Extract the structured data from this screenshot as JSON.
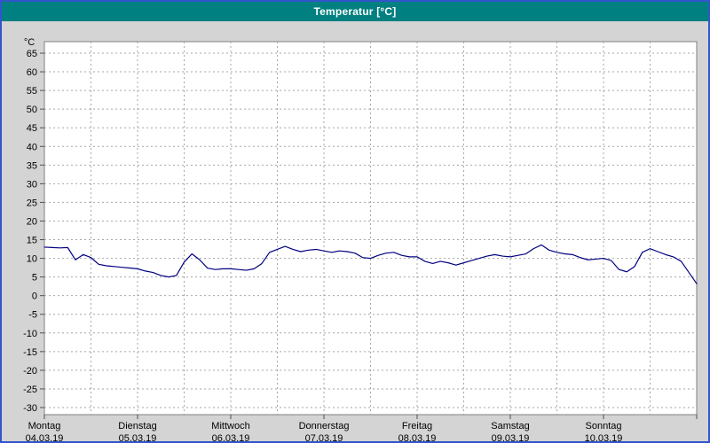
{
  "window": {
    "title": "Temperatur [°C]"
  },
  "colors": {
    "window_border": "#3355cc",
    "titlebar_bg": "#008080",
    "titlebar_text": "#ffffff",
    "body_bg": "#d4d4d4",
    "plot_bg": "#ffffff",
    "grid": "#a6a6a6",
    "axis": "#505050",
    "text": "#000000",
    "line": "#000080"
  },
  "chart_data": {
    "type": "line",
    "title": "Temperatur [°C]",
    "series_name": "Temperatur",
    "y_unit_label": "°C",
    "ylim": [
      -30,
      65
    ],
    "y_tick_step": 5,
    "y_ticks": [
      65,
      60,
      55,
      50,
      45,
      40,
      35,
      30,
      25,
      20,
      15,
      10,
      5,
      0,
      -5,
      -10,
      -15,
      -20,
      -25,
      -30
    ],
    "grid": "dashed",
    "legend_position": "none",
    "x_days": [
      {
        "name": "Montag",
        "date": "04.03.19"
      },
      {
        "name": "Dienstag",
        "date": "05.03.19"
      },
      {
        "name": "Mittwoch",
        "date": "06.03.19"
      },
      {
        "name": "Donnerstag",
        "date": "07.03.19"
      },
      {
        "name": "Freitag",
        "date": "08.03.19"
      },
      {
        "name": "Samstag",
        "date": "09.03.19"
      },
      {
        "name": "Sonntag",
        "date": "10.03.19"
      }
    ],
    "samples_per_day": 12,
    "values": [
      13.0,
      12.9,
      12.8,
      12.9,
      9.6,
      11.0,
      10.2,
      8.4,
      8.0,
      7.8,
      7.6,
      7.4,
      7.2,
      6.6,
      6.2,
      5.4,
      5.0,
      5.4,
      9.0,
      11.2,
      9.6,
      7.4,
      7.0,
      7.2,
      7.2,
      7.0,
      6.8,
      7.2,
      8.6,
      11.6,
      12.4,
      13.2,
      12.4,
      11.8,
      12.2,
      12.4,
      12.0,
      11.6,
      12.0,
      11.8,
      11.4,
      10.2,
      10.0,
      10.8,
      11.4,
      11.6,
      10.8,
      10.4,
      10.4,
      9.2,
      8.6,
      9.2,
      8.8,
      8.2,
      8.8,
      9.4,
      10.0,
      10.6,
      11.0,
      10.6,
      10.4,
      10.8,
      11.2,
      12.6,
      13.6,
      12.2,
      11.6,
      11.2,
      11.0,
      10.2,
      9.6,
      9.8,
      10.0,
      9.4,
      7.0,
      6.4,
      7.8,
      11.6,
      12.6,
      11.8,
      11.0,
      10.4,
      9.2,
      6.2,
      3.2
    ]
  }
}
